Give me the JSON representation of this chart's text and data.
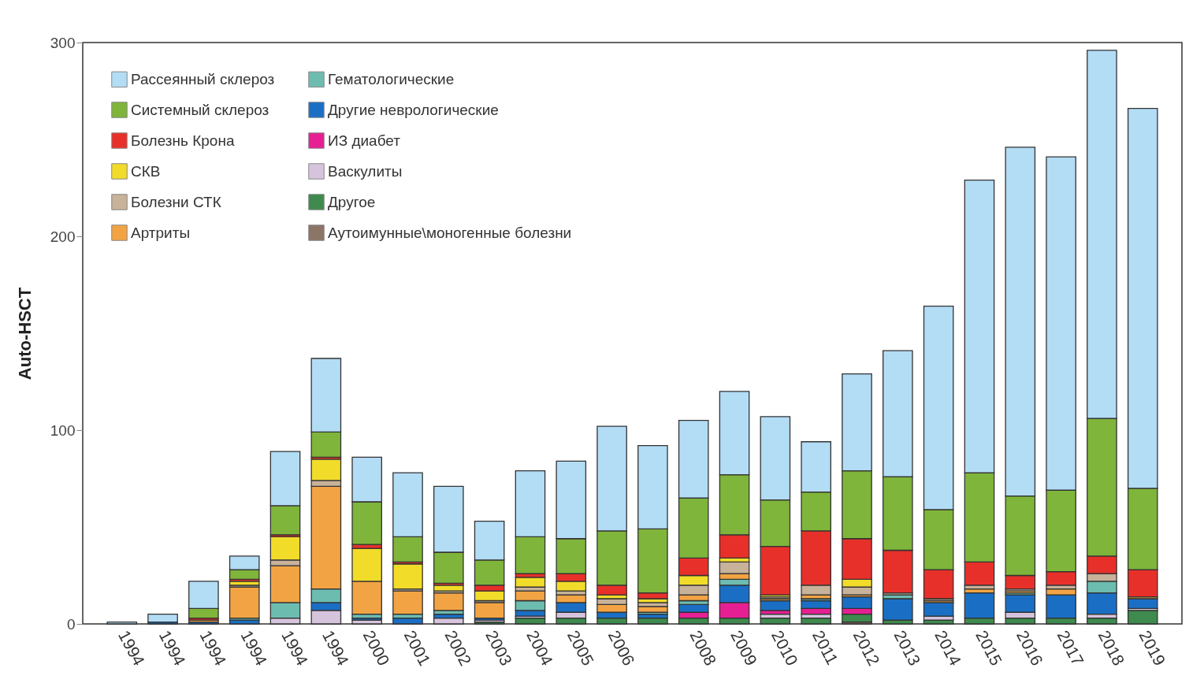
{
  "chart_data": {
    "type": "bar",
    "stacked": true,
    "ylabel": "Auto-HSCT",
    "categories": [
      "1994",
      "1994",
      "1994",
      "1994",
      "1994",
      "1994",
      "2000",
      "2001",
      "2002",
      "2003",
      "2004",
      "2005",
      "2006",
      null,
      "2008",
      "2009",
      "2010",
      "2011",
      "2012",
      "2013",
      "2014",
      "2015",
      "2016",
      "2017",
      "2018",
      "2019"
    ],
    "ylim": [
      0,
      300
    ],
    "yticks": [
      0,
      100,
      200,
      300
    ],
    "grid": false,
    "legend": "top left",
    "series": [
      {
        "name": "Аутоимунные\\моногенные болезни",
        "color": "#8c7466",
        "values": [
          0,
          0,
          0,
          0,
          0,
          0,
          0,
          0,
          0,
          0,
          0,
          0,
          0,
          0,
          0,
          0,
          0,
          0,
          1,
          0,
          0,
          0,
          0,
          0,
          0,
          0
        ]
      },
      {
        "name": "Другое",
        "color": "#3f8a4e",
        "values": [
          0,
          0,
          0,
          0,
          0,
          0,
          0,
          0,
          0,
          1,
          3,
          3,
          3,
          3,
          3,
          3,
          3,
          3,
          4,
          2,
          2,
          3,
          3,
          3,
          3,
          7
        ]
      },
      {
        "name": "Васкулиты",
        "color": "#d6c4dc",
        "values": [
          0,
          0,
          0,
          0,
          3,
          7,
          2,
          0,
          3,
          1,
          1,
          3,
          0,
          0,
          0,
          0,
          2,
          2,
          0,
          0,
          2,
          0,
          3,
          0,
          2,
          1
        ]
      },
      {
        "name": "ИЗ диабет",
        "color": "#e61f93",
        "values": [
          0,
          0,
          0,
          0,
          0,
          0,
          0,
          0,
          0,
          0,
          0,
          0,
          0,
          0,
          3,
          8,
          2,
          3,
          3,
          0,
          0,
          0,
          0,
          0,
          0,
          0
        ]
      },
      {
        "name": "Другие неврологические",
        "color": "#1a6fc4",
        "values": [
          0,
          1,
          1,
          2,
          0,
          4,
          1,
          3,
          2,
          1,
          3,
          5,
          3,
          2,
          4,
          9,
          5,
          4,
          6,
          11,
          7,
          13,
          9,
          12,
          11,
          5
        ]
      },
      {
        "name": "Гематологические",
        "color": "#6dbcb0",
        "values": [
          0,
          0,
          0,
          1,
          8,
          7,
          2,
          2,
          2,
          0,
          5,
          0,
          0,
          1,
          2,
          3,
          0,
          1,
          0,
          2,
          0,
          0,
          1,
          0,
          6,
          0
        ]
      },
      {
        "name": "Артриты",
        "color": "#f2a444",
        "values": [
          0,
          0,
          1,
          16,
          19,
          53,
          17,
          12,
          9,
          8,
          5,
          4,
          4,
          3,
          3,
          3,
          1,
          2,
          1,
          0,
          1,
          2,
          1,
          3,
          0,
          1
        ]
      },
      {
        "name": "Болезни СТК",
        "color": "#c8b29a",
        "values": [
          0,
          0,
          0,
          1,
          3,
          3,
          0,
          1,
          1,
          1,
          2,
          2,
          3,
          2,
          5,
          6,
          1,
          5,
          4,
          1,
          1,
          2,
          1,
          2,
          4,
          0
        ]
      },
      {
        "name": "СКВ",
        "color": "#f2dc2a",
        "values": [
          0,
          0,
          0,
          2,
          12,
          11,
          17,
          13,
          3,
          5,
          5,
          5,
          2,
          2,
          5,
          2,
          1,
          0,
          4,
          0,
          0,
          0,
          0,
          0,
          0,
          0
        ]
      },
      {
        "name": "Болезнь Крона",
        "color": "#e8302a",
        "values": [
          0,
          0,
          1,
          1,
          1,
          1,
          2,
          1,
          1,
          3,
          2,
          4,
          5,
          3,
          9,
          12,
          25,
          28,
          21,
          22,
          15,
          12,
          7,
          7,
          9,
          14
        ]
      },
      {
        "name": "Системный склероз",
        "color": "#7fb53a",
        "values": [
          0,
          0,
          5,
          5,
          15,
          13,
          22,
          13,
          16,
          13,
          19,
          18,
          28,
          33,
          31,
          31,
          24,
          20,
          35,
          38,
          31,
          46,
          41,
          42,
          71,
          42
        ]
      },
      {
        "name": "Рассеянный склероз",
        "color": "#b3dcf5",
        "values": [
          1,
          4,
          14,
          7,
          28,
          38,
          23,
          33,
          34,
          20,
          34,
          40,
          54,
          43,
          40,
          43,
          43,
          26,
          50,
          65,
          105,
          151,
          180,
          172,
          190,
          196
        ]
      }
    ]
  }
}
